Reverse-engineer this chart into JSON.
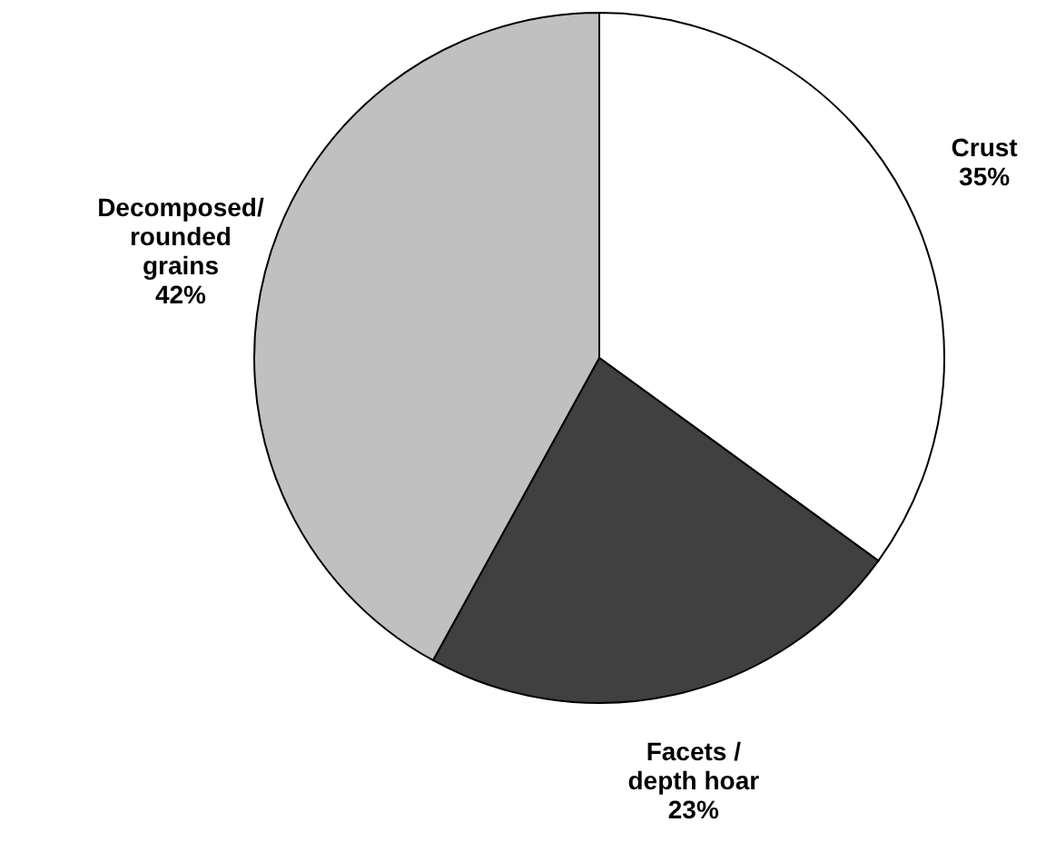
{
  "chart_data": {
    "type": "pie",
    "categories": [
      "Crust",
      "Facets / depth hoar",
      "Decomposed/ rounded grains"
    ],
    "values": [
      35,
      23,
      42
    ],
    "colors": [
      "#ffffff",
      "#404040",
      "#c0c0c0"
    ],
    "value_labels": [
      "35%",
      "23%",
      "42%"
    ]
  }
}
